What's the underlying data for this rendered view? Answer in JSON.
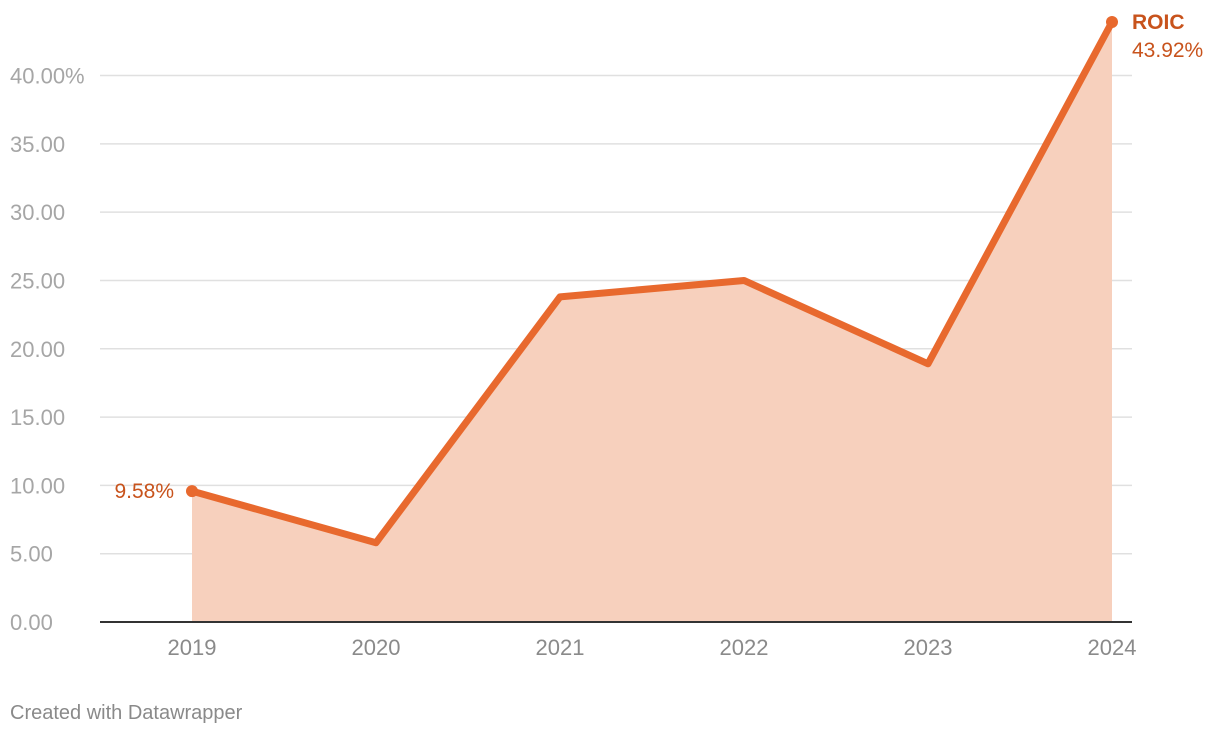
{
  "chart_data": {
    "type": "area",
    "x": [
      "2019",
      "2020",
      "2021",
      "2022",
      "2023",
      "2024"
    ],
    "series": [
      {
        "name": "ROIC",
        "values": [
          9.58,
          5.8,
          23.8,
          25.0,
          18.9,
          43.92
        ]
      }
    ],
    "ylim": [
      0,
      43.92
    ],
    "yticks": [
      0,
      5,
      10,
      15,
      20,
      25,
      30,
      35,
      40
    ],
    "ytick_labels": [
      "0.00",
      "5.00",
      "10.00",
      "15.00",
      "20.00",
      "25.00",
      "30.00",
      "35.00",
      "40.00%"
    ],
    "grid": true,
    "start_label": "9.58%",
    "end_label": "43.92%",
    "series_label": "ROIC",
    "colors": {
      "line": "#e8692e",
      "area": "#f7d0bd",
      "label": "#c8531c",
      "grid": "#e0e0e0",
      "axis": "#333333"
    }
  },
  "footer": {
    "credit": "Created with Datawrapper"
  }
}
